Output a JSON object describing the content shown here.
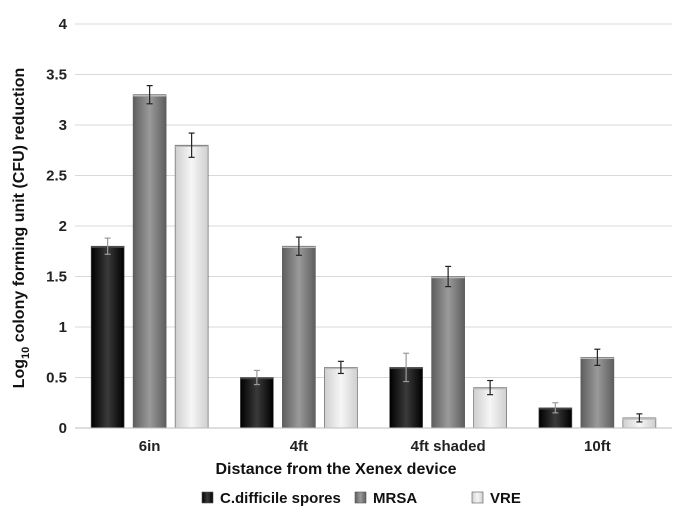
{
  "chart_data": {
    "type": "bar",
    "title": "",
    "xlabel": "Distance from the Xenex device",
    "ylabel": {
      "prefix": "Log",
      "subscript": "10",
      "suffix": " colony forming unit (CFU) reduction"
    },
    "ylim": [
      0,
      4
    ],
    "yticks": [
      "0",
      "0.5",
      "1",
      "1.5",
      "2",
      "2.5",
      "3",
      "3.5",
      "4"
    ],
    "grid": true,
    "legend_position": "bottom",
    "categories": [
      "6in",
      "4ft",
      "4ft shaded",
      "10ft"
    ],
    "series": [
      {
        "name": "C.difficile spores",
        "color": "#111111",
        "values": [
          1.8,
          0.5,
          0.6,
          0.2
        ],
        "errors": [
          0.08,
          0.07,
          0.14,
          0.05
        ]
      },
      {
        "name": "MRSA",
        "color": "#7a7a7a",
        "values": [
          3.3,
          1.8,
          1.5,
          0.7
        ],
        "errors": [
          0.09,
          0.09,
          0.1,
          0.08
        ]
      },
      {
        "name": "VRE",
        "color": "#e4e4e4",
        "values": [
          2.8,
          0.6,
          0.4,
          0.1
        ],
        "errors": [
          0.12,
          0.06,
          0.07,
          0.04
        ]
      }
    ]
  }
}
